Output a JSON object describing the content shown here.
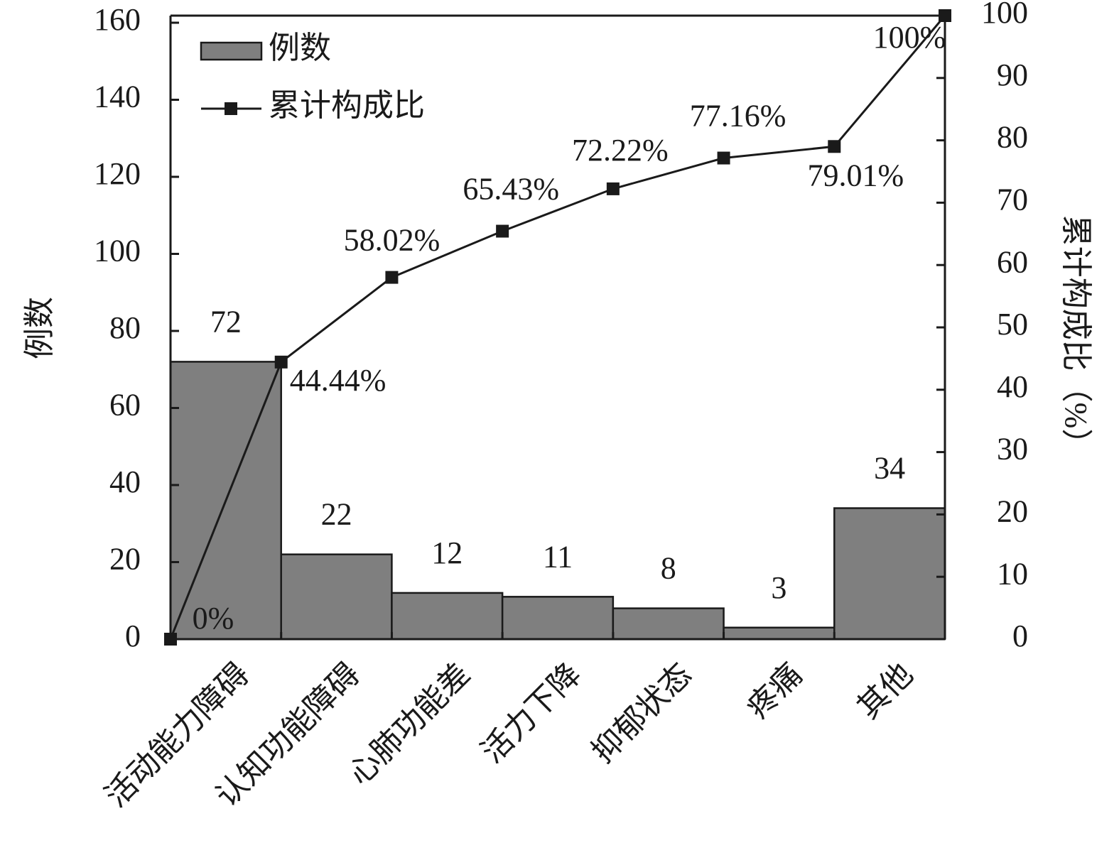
{
  "chart_data": {
    "type": "pareto",
    "categories": [
      "活动能力障碍",
      "认知功能障碍",
      "心肺功能差",
      "活力下降",
      "抑郁状态",
      "疼痛",
      "其他"
    ],
    "series": [
      {
        "name": "例数",
        "type": "bar",
        "color": "#7f7f7f",
        "values": [
          72,
          22,
          12,
          11,
          8,
          3,
          34
        ]
      },
      {
        "name": "累计构成比",
        "type": "line",
        "axis": "y2",
        "color": "#1a1a1a",
        "x": [
          0,
          1,
          2,
          3,
          4,
          5,
          6,
          7
        ],
        "values": [
          0,
          44.44,
          58.02,
          65.43,
          72.22,
          77.16,
          79.01,
          100
        ],
        "value_labels": [
          "0%",
          "44.44%",
          "58.02%",
          "65.43%",
          "72.22%",
          "77.16%",
          "79.01%",
          "100%"
        ]
      }
    ],
    "ylabel": "例数",
    "y2label": "累计构成比（%）",
    "ylim": [
      0,
      160
    ],
    "yticks": [
      0,
      20,
      40,
      60,
      80,
      100,
      120,
      140,
      160
    ],
    "y2lim": [
      0,
      100
    ],
    "y2ticks": [
      0,
      10,
      20,
      30,
      40,
      50,
      60,
      70,
      80,
      90,
      100
    ],
    "legend": "upper-left"
  }
}
